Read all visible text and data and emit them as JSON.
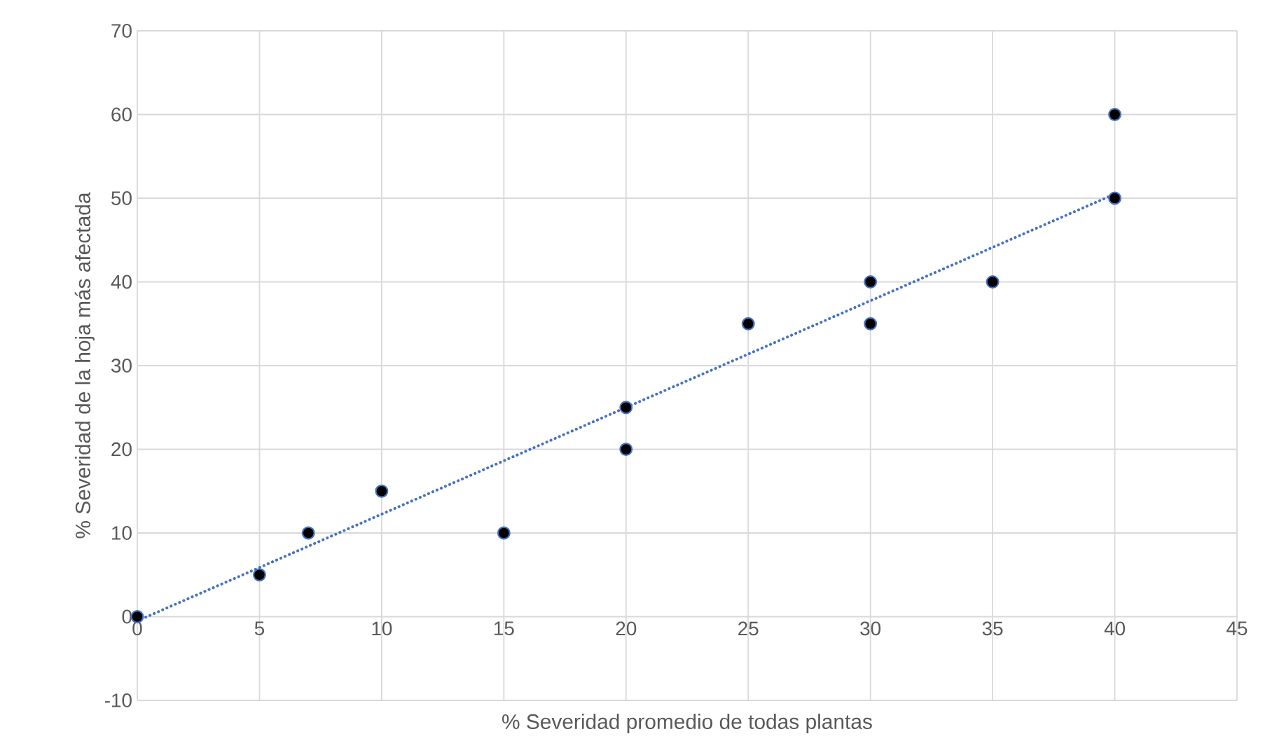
{
  "chart_data": {
    "type": "scatter",
    "xlabel": "% Severidad promedio de todas plantas",
    "ylabel": "% Severidad de la hoja más afectada",
    "xlim": [
      0,
      45
    ],
    "ylim": [
      -10,
      70
    ],
    "xticks": [
      0,
      5,
      10,
      15,
      20,
      25,
      30,
      35,
      40,
      45
    ],
    "yticks": [
      -10,
      0,
      10,
      20,
      30,
      40,
      50,
      60,
      70
    ],
    "grid": true,
    "series": [
      {
        "marker": "circle",
        "color": "#000000",
        "x": [
          0,
          5,
          7,
          10,
          15,
          20,
          20,
          25,
          30,
          30,
          35,
          40,
          40
        ],
        "values": [
          0,
          5,
          10,
          15,
          10,
          25,
          20,
          35,
          40,
          35,
          40,
          60,
          50
        ]
      },
      {
        "type": "line",
        "color": "#4472c4",
        "line_style": "dotted",
        "marker": "none",
        "x": [
          0,
          40
        ],
        "values": [
          -0.5,
          50.5
        ]
      }
    ]
  }
}
